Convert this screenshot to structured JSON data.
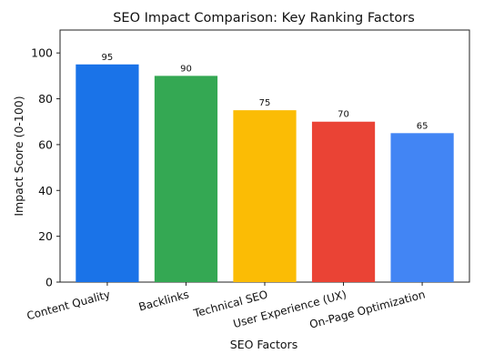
{
  "chart_data": {
    "type": "bar",
    "title": "SEO Impact Comparison: Key Ranking Factors",
    "xlabel": "SEO Factors",
    "ylabel": "Impact Score (0-100)",
    "ylim": [
      0,
      110
    ],
    "yticks": [
      0,
      20,
      40,
      60,
      80,
      100
    ],
    "categories": [
      "Content Quality",
      "Backlinks",
      "Technical SEO",
      "User Experience (UX)",
      "On-Page Optimization"
    ],
    "values": [
      95,
      90,
      75,
      70,
      65
    ],
    "colors": [
      "#1a73e8",
      "#34a853",
      "#fbbc05",
      "#ea4335",
      "#4285f4"
    ],
    "grid": false,
    "legend": "none"
  }
}
